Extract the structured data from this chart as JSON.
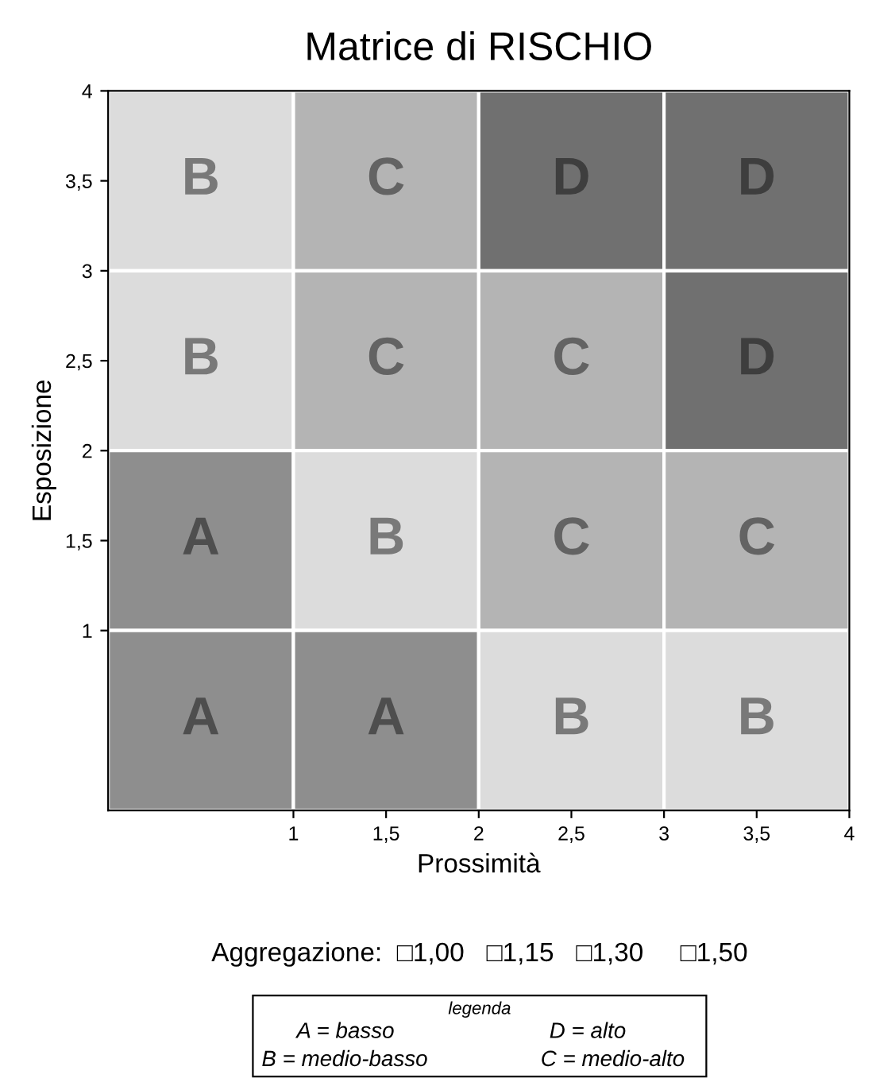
{
  "chart_data": {
    "type": "heatmap",
    "title": "Matrice di RISCHIO",
    "xlabel": "Prossimità",
    "ylabel": "Esposizione",
    "xlim": [
      0,
      4
    ],
    "ylim": [
      0,
      4
    ],
    "xticks": [
      1,
      {
        "value": 1.5,
        "label": "1,5"
      },
      2,
      {
        "value": 2.5,
        "label": "2,5"
      },
      3,
      {
        "value": 3.5,
        "label": "3,5"
      },
      4
    ],
    "yticks": [
      1,
      {
        "value": 1.5,
        "label": "1,5"
      },
      2,
      {
        "value": 2.5,
        "label": "2,5"
      },
      3,
      {
        "value": 3.5,
        "label": "3,5"
      },
      4
    ],
    "cells": [
      [
        "B",
        "C",
        "D",
        "D"
      ],
      [
        "B",
        "C",
        "C",
        "D"
      ],
      [
        "A",
        "B",
        "C",
        "C"
      ],
      [
        "A",
        "A",
        "B",
        "B"
      ]
    ],
    "colors": [
      [
        "#dcdcdc",
        "#b4b4b4",
        "#707070",
        "#707070"
      ],
      [
        "#dcdcdc",
        "#b4b4b4",
        "#b4b4b4",
        "#707070"
      ],
      [
        "#8e8e8e",
        "#dcdcdc",
        "#b4b4b4",
        "#b4b4b4"
      ],
      [
        "#8e8e8e",
        "#8e8e8e",
        "#dcdcdc",
        "#dcdcdc"
      ]
    ],
    "grid": false,
    "annotations": [
      "Aggregazione:  □1,00   □1,15   □1,30     □1,50",
      "legenda",
      "A = basso",
      "D = alto",
      "B = medio-basso",
      "C = medio-alto"
    ]
  }
}
